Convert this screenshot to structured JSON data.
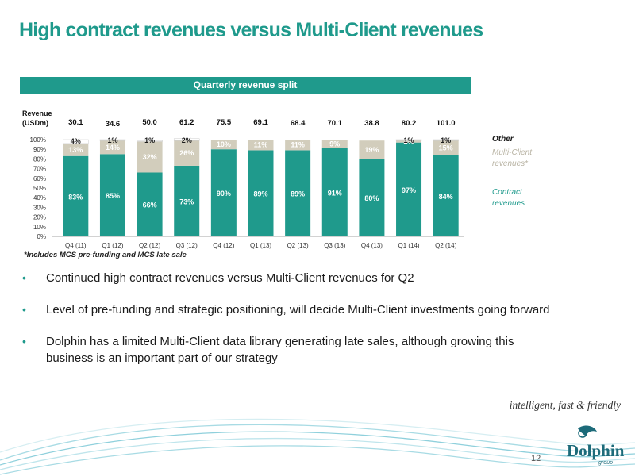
{
  "title": "High contract revenues versus Multi-Client revenues",
  "banner": "Quarterly revenue split",
  "chart_data": {
    "type": "bar",
    "stacked": true,
    "categories": [
      "Q4 (11)",
      "Q1 (12)",
      "Q2 (12)",
      "Q3 (12)",
      "Q4 (12)",
      "Q1 (13)",
      "Q2 (13)",
      "Q3 (13)",
      "Q4 (13)",
      "Q1 (14)",
      "Q2 (14)"
    ],
    "revenue_label": "Revenue\n(USDm)",
    "revenue_totals": [
      "30.1",
      "34.6",
      "50.0",
      "61.2",
      "75.5",
      "69.1",
      "68.4",
      "70.1",
      "38.8",
      "80.2",
      "101.0"
    ],
    "ylim": [
      0,
      100
    ],
    "yticks": [
      "0%",
      "10%",
      "20%",
      "30%",
      "40%",
      "50%",
      "60%",
      "70%",
      "80%",
      "90%",
      "100%"
    ],
    "series": [
      {
        "name": "Contract revenues",
        "color": "#1f9a8c",
        "values": [
          83,
          85,
          66,
          73,
          90,
          89,
          89,
          91,
          80,
          97,
          84
        ],
        "labels": [
          "83%",
          "85%",
          "66%",
          "73%",
          "90%",
          "89%",
          "89%",
          "91%",
          "80%",
          "97%",
          "84%"
        ]
      },
      {
        "name": "Multi-Client revenues*",
        "color": "#d2cdbc",
        "values": [
          13,
          14,
          32,
          26,
          10,
          11,
          11,
          9,
          19,
          2,
          15
        ],
        "labels": [
          "13%",
          "14%",
          "32%",
          "26%",
          "10%",
          "11%",
          "11%",
          "9%",
          "19%",
          "2%",
          "15%"
        ]
      },
      {
        "name": "Other",
        "color": "#ffffff",
        "values": [
          4,
          1,
          1,
          2,
          0,
          0,
          0,
          0,
          0,
          1,
          1
        ],
        "labels": [
          "4%",
          "1%",
          "1%",
          "2%",
          "",
          "",
          "",
          "",
          "",
          "1%",
          "1%"
        ]
      }
    ],
    "legend": [
      "Other",
      "Multi-Client\nrevenues*",
      "Contract\nrevenues"
    ],
    "legend_position": "right",
    "grid": false
  },
  "footnote": "*Includes MCS pre-funding and MCS late sale",
  "bullets": [
    "Continued high contract revenues versus Multi-Client revenues for Q2",
    "Level of pre-funding and strategic positioning, will decide Multi-Client investments going forward",
    "Dolphin has a limited Multi-Client data library  generating late sales, although growing this business is an important part of our strategy"
  ],
  "bullet_glyph": "•",
  "tagline": "intelligent, fast & friendly",
  "page_number": "12",
  "logo": {
    "name": "Dolphin",
    "sub": "group"
  }
}
